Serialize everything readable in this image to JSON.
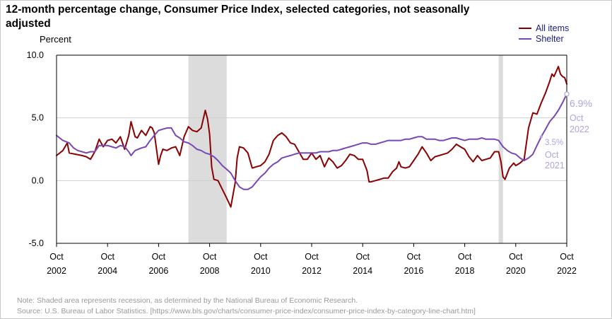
{
  "chart_data": {
    "type": "line",
    "title": "12-month percentage change, Consumer Price Index, selected categories, not seasonally adjusted",
    "title_lines": [
      "12-month percentage change, Consumer Price Index, selected categories, not seasonally",
      "adjusted"
    ],
    "ylabel": "Percent",
    "ylim": [
      -5,
      10
    ],
    "xlim": [
      2002.75,
      2022.75
    ],
    "y_ticks": [
      {
        "value": 10,
        "label": "10.0"
      },
      {
        "value": 5,
        "label": "5.0"
      },
      {
        "value": 0,
        "label": "0.0"
      },
      {
        "value": -5,
        "label": "-5.0"
      }
    ],
    "x_ticks": [
      {
        "value": 2002.75,
        "month": "Oct",
        "year": "2002"
      },
      {
        "value": 2004.75,
        "month": "Oct",
        "year": "2004"
      },
      {
        "value": 2006.75,
        "month": "Oct",
        "year": "2006"
      },
      {
        "value": 2008.75,
        "month": "Oct",
        "year": "2008"
      },
      {
        "value": 2010.75,
        "month": "Oct",
        "year": "2010"
      },
      {
        "value": 2012.75,
        "month": "Oct",
        "year": "2012"
      },
      {
        "value": 2014.75,
        "month": "Oct",
        "year": "2014"
      },
      {
        "value": 2016.75,
        "month": "Oct",
        "year": "2016"
      },
      {
        "value": 2018.75,
        "month": "Oct",
        "year": "2018"
      },
      {
        "value": 2020.75,
        "month": "Oct",
        "year": "2020"
      },
      {
        "value": 2022.75,
        "month": "Oct",
        "year": "2022"
      }
    ],
    "recessions": [
      [
        2007.92,
        2009.42
      ],
      [
        2020.08,
        2020.25
      ]
    ],
    "legend_position": "top-right",
    "grid": "horizontal at 5.0 only",
    "series": [
      {
        "name": "All items",
        "color": "#8b0000",
        "points": [
          [
            2002.75,
            2.0
          ],
          [
            2003.0,
            2.4
          ],
          [
            2003.17,
            3.0
          ],
          [
            2003.25,
            2.2
          ],
          [
            2003.5,
            2.1
          ],
          [
            2003.75,
            2.0
          ],
          [
            2003.92,
            1.9
          ],
          [
            2004.08,
            1.7
          ],
          [
            2004.25,
            2.3
          ],
          [
            2004.42,
            3.3
          ],
          [
            2004.58,
            2.7
          ],
          [
            2004.75,
            3.2
          ],
          [
            2004.92,
            3.3
          ],
          [
            2005.08,
            3.0
          ],
          [
            2005.25,
            3.5
          ],
          [
            2005.42,
            2.5
          ],
          [
            2005.58,
            3.6
          ],
          [
            2005.67,
            4.7
          ],
          [
            2005.83,
            3.5
          ],
          [
            2005.92,
            3.4
          ],
          [
            2006.08,
            4.0
          ],
          [
            2006.25,
            3.6
          ],
          [
            2006.42,
            4.3
          ],
          [
            2006.5,
            4.2
          ],
          [
            2006.58,
            3.8
          ],
          [
            2006.75,
            1.3
          ],
          [
            2006.83,
            2.0
          ],
          [
            2006.92,
            2.5
          ],
          [
            2007.08,
            2.4
          ],
          [
            2007.25,
            2.6
          ],
          [
            2007.42,
            2.7
          ],
          [
            2007.58,
            2.0
          ],
          [
            2007.75,
            3.5
          ],
          [
            2007.92,
            4.3
          ],
          [
            2008.08,
            4.0
          ],
          [
            2008.25,
            3.9
          ],
          [
            2008.42,
            4.2
          ],
          [
            2008.58,
            5.6
          ],
          [
            2008.67,
            4.9
          ],
          [
            2008.75,
            3.7
          ],
          [
            2008.83,
            1.1
          ],
          [
            2008.92,
            0.1
          ],
          [
            2009.08,
            0.0
          ],
          [
            2009.25,
            -0.7
          ],
          [
            2009.42,
            -1.4
          ],
          [
            2009.58,
            -2.1
          ],
          [
            2009.75,
            -0.2
          ],
          [
            2009.83,
            1.8
          ],
          [
            2009.92,
            2.7
          ],
          [
            2010.08,
            2.6
          ],
          [
            2010.25,
            2.2
          ],
          [
            2010.42,
            1.0
          ],
          [
            2010.58,
            1.1
          ],
          [
            2010.75,
            1.2
          ],
          [
            2010.92,
            1.5
          ],
          [
            2011.08,
            2.1
          ],
          [
            2011.25,
            3.2
          ],
          [
            2011.42,
            3.6
          ],
          [
            2011.58,
            3.8
          ],
          [
            2011.75,
            3.5
          ],
          [
            2011.92,
            3.0
          ],
          [
            2012.08,
            2.9
          ],
          [
            2012.25,
            2.3
          ],
          [
            2012.42,
            1.7
          ],
          [
            2012.58,
            1.7
          ],
          [
            2012.75,
            2.2
          ],
          [
            2012.92,
            1.7
          ],
          [
            2013.08,
            2.0
          ],
          [
            2013.25,
            1.1
          ],
          [
            2013.42,
            1.8
          ],
          [
            2013.58,
            1.5
          ],
          [
            2013.75,
            1.0
          ],
          [
            2013.92,
            1.2
          ],
          [
            2014.08,
            1.6
          ],
          [
            2014.25,
            2.1
          ],
          [
            2014.42,
            2.0
          ],
          [
            2014.58,
            1.7
          ],
          [
            2014.75,
            1.7
          ],
          [
            2014.92,
            0.8
          ],
          [
            2015.0,
            -0.1
          ],
          [
            2015.08,
            -0.1
          ],
          [
            2015.25,
            0.0
          ],
          [
            2015.42,
            0.1
          ],
          [
            2015.58,
            0.2
          ],
          [
            2015.75,
            0.2
          ],
          [
            2015.92,
            0.7
          ],
          [
            2016.08,
            1.0
          ],
          [
            2016.17,
            1.5
          ],
          [
            2016.25,
            1.1
          ],
          [
            2016.42,
            1.0
          ],
          [
            2016.58,
            1.1
          ],
          [
            2016.75,
            1.6
          ],
          [
            2016.92,
            2.1
          ],
          [
            2017.08,
            2.7
          ],
          [
            2017.25,
            2.2
          ],
          [
            2017.42,
            1.6
          ],
          [
            2017.58,
            1.9
          ],
          [
            2017.75,
            2.0
          ],
          [
            2017.92,
            2.1
          ],
          [
            2018.08,
            2.2
          ],
          [
            2018.25,
            2.5
          ],
          [
            2018.42,
            2.9
          ],
          [
            2018.58,
            2.7
          ],
          [
            2018.75,
            2.5
          ],
          [
            2018.92,
            1.9
          ],
          [
            2019.08,
            1.5
          ],
          [
            2019.25,
            2.0
          ],
          [
            2019.42,
            1.6
          ],
          [
            2019.58,
            1.7
          ],
          [
            2019.75,
            1.8
          ],
          [
            2019.92,
            2.3
          ],
          [
            2020.08,
            2.3
          ],
          [
            2020.17,
            1.5
          ],
          [
            2020.25,
            0.3
          ],
          [
            2020.33,
            0.1
          ],
          [
            2020.5,
            1.0
          ],
          [
            2020.67,
            1.4
          ],
          [
            2020.75,
            1.2
          ],
          [
            2020.92,
            1.4
          ],
          [
            2021.08,
            1.7
          ],
          [
            2021.25,
            4.2
          ],
          [
            2021.42,
            5.4
          ],
          [
            2021.58,
            5.3
          ],
          [
            2021.75,
            6.2
          ],
          [
            2021.92,
            7.0
          ],
          [
            2022.08,
            7.9
          ],
          [
            2022.17,
            8.5
          ],
          [
            2022.25,
            8.3
          ],
          [
            2022.42,
            9.1
          ],
          [
            2022.5,
            8.5
          ],
          [
            2022.58,
            8.3
          ],
          [
            2022.67,
            8.2
          ],
          [
            2022.75,
            7.7
          ]
        ]
      },
      {
        "name": "Shelter",
        "color": "#7648b3",
        "points": [
          [
            2002.75,
            3.6
          ],
          [
            2003.0,
            3.2
          ],
          [
            2003.25,
            3.0
          ],
          [
            2003.42,
            2.6
          ],
          [
            2003.58,
            2.4
          ],
          [
            2003.75,
            2.3
          ],
          [
            2003.92,
            2.2
          ],
          [
            2004.08,
            2.3
          ],
          [
            2004.25,
            2.3
          ],
          [
            2004.42,
            2.8
          ],
          [
            2004.58,
            2.8
          ],
          [
            2004.75,
            2.8
          ],
          [
            2004.92,
            2.7
          ],
          [
            2005.08,
            2.6
          ],
          [
            2005.25,
            2.8
          ],
          [
            2005.42,
            2.7
          ],
          [
            2005.58,
            2.3
          ],
          [
            2005.67,
            2.0
          ],
          [
            2005.83,
            2.4
          ],
          [
            2006.08,
            2.6
          ],
          [
            2006.25,
            2.7
          ],
          [
            2006.42,
            3.2
          ],
          [
            2006.58,
            3.6
          ],
          [
            2006.75,
            4.0
          ],
          [
            2006.92,
            4.1
          ],
          [
            2007.08,
            4.2
          ],
          [
            2007.25,
            4.2
          ],
          [
            2007.42,
            3.6
          ],
          [
            2007.58,
            3.4
          ],
          [
            2007.75,
            3.1
          ],
          [
            2007.92,
            3.0
          ],
          [
            2008.08,
            2.8
          ],
          [
            2008.25,
            2.5
          ],
          [
            2008.42,
            2.4
          ],
          [
            2008.58,
            2.2
          ],
          [
            2008.75,
            2.1
          ],
          [
            2008.92,
            1.9
          ],
          [
            2009.08,
            1.6
          ],
          [
            2009.25,
            1.2
          ],
          [
            2009.42,
            0.9
          ],
          [
            2009.58,
            0.6
          ],
          [
            2009.75,
            0.0
          ],
          [
            2009.92,
            -0.5
          ],
          [
            2010.08,
            -0.7
          ],
          [
            2010.25,
            -0.7
          ],
          [
            2010.42,
            -0.5
          ],
          [
            2010.58,
            -0.1
          ],
          [
            2010.75,
            0.3
          ],
          [
            2010.92,
            0.6
          ],
          [
            2011.08,
            1.0
          ],
          [
            2011.25,
            1.3
          ],
          [
            2011.42,
            1.5
          ],
          [
            2011.58,
            1.8
          ],
          [
            2011.75,
            1.9
          ],
          [
            2011.92,
            2.0
          ],
          [
            2012.08,
            2.1
          ],
          [
            2012.25,
            2.2
          ],
          [
            2012.42,
            2.2
          ],
          [
            2012.58,
            2.2
          ],
          [
            2012.75,
            2.2
          ],
          [
            2012.92,
            2.2
          ],
          [
            2013.08,
            2.3
          ],
          [
            2013.25,
            2.3
          ],
          [
            2013.42,
            2.3
          ],
          [
            2013.58,
            2.4
          ],
          [
            2013.75,
            2.4
          ],
          [
            2013.92,
            2.5
          ],
          [
            2014.08,
            2.6
          ],
          [
            2014.25,
            2.7
          ],
          [
            2014.42,
            2.8
          ],
          [
            2014.58,
            2.9
          ],
          [
            2014.75,
            3.0
          ],
          [
            2014.92,
            3.0
          ],
          [
            2015.08,
            2.9
          ],
          [
            2015.25,
            2.9
          ],
          [
            2015.42,
            3.0
          ],
          [
            2015.58,
            3.1
          ],
          [
            2015.75,
            3.2
          ],
          [
            2015.92,
            3.2
          ],
          [
            2016.08,
            3.2
          ],
          [
            2016.25,
            3.2
          ],
          [
            2016.42,
            3.3
          ],
          [
            2016.58,
            3.3
          ],
          [
            2016.75,
            3.4
          ],
          [
            2016.92,
            3.5
          ],
          [
            2017.08,
            3.5
          ],
          [
            2017.25,
            3.3
          ],
          [
            2017.42,
            3.3
          ],
          [
            2017.58,
            3.3
          ],
          [
            2017.75,
            3.2
          ],
          [
            2017.92,
            3.2
          ],
          [
            2018.08,
            3.3
          ],
          [
            2018.25,
            3.4
          ],
          [
            2018.42,
            3.4
          ],
          [
            2018.58,
            3.3
          ],
          [
            2018.75,
            3.2
          ],
          [
            2018.92,
            3.3
          ],
          [
            2019.08,
            3.3
          ],
          [
            2019.25,
            3.3
          ],
          [
            2019.42,
            3.4
          ],
          [
            2019.58,
            3.3
          ],
          [
            2019.75,
            3.3
          ],
          [
            2019.92,
            3.3
          ],
          [
            2020.08,
            3.2
          ],
          [
            2020.25,
            2.7
          ],
          [
            2020.42,
            2.4
          ],
          [
            2020.58,
            2.2
          ],
          [
            2020.75,
            2.1
          ],
          [
            2020.92,
            1.8
          ],
          [
            2021.08,
            1.6
          ],
          [
            2021.25,
            1.8
          ],
          [
            2021.42,
            2.1
          ],
          [
            2021.58,
            2.8
          ],
          [
            2021.75,
            3.5
          ],
          [
            2021.92,
            4.1
          ],
          [
            2022.08,
            4.7
          ],
          [
            2022.25,
            5.1
          ],
          [
            2022.42,
            5.6
          ],
          [
            2022.58,
            6.2
          ],
          [
            2022.75,
            6.9
          ]
        ]
      }
    ],
    "annotations": [
      {
        "series": "Shelter",
        "x": 2022.75,
        "y": 6.9,
        "value_label": "6.9%",
        "month": "Oct",
        "year": "2022"
      },
      {
        "series": "Shelter",
        "x": 2021.75,
        "y": 3.5,
        "value_label": "3.5%",
        "month": "Oct",
        "year": "2021"
      }
    ]
  },
  "notes": {
    "note": "Note: Shaded area represents recession, as determined by the National Bureau of Economic Research.",
    "source": "Source: U.S. Bureau of Labor Statistics.  [https://www.bls.gov/charts/consumer-price-index/consumer-price-index-by-category-line-chart.htm]"
  }
}
